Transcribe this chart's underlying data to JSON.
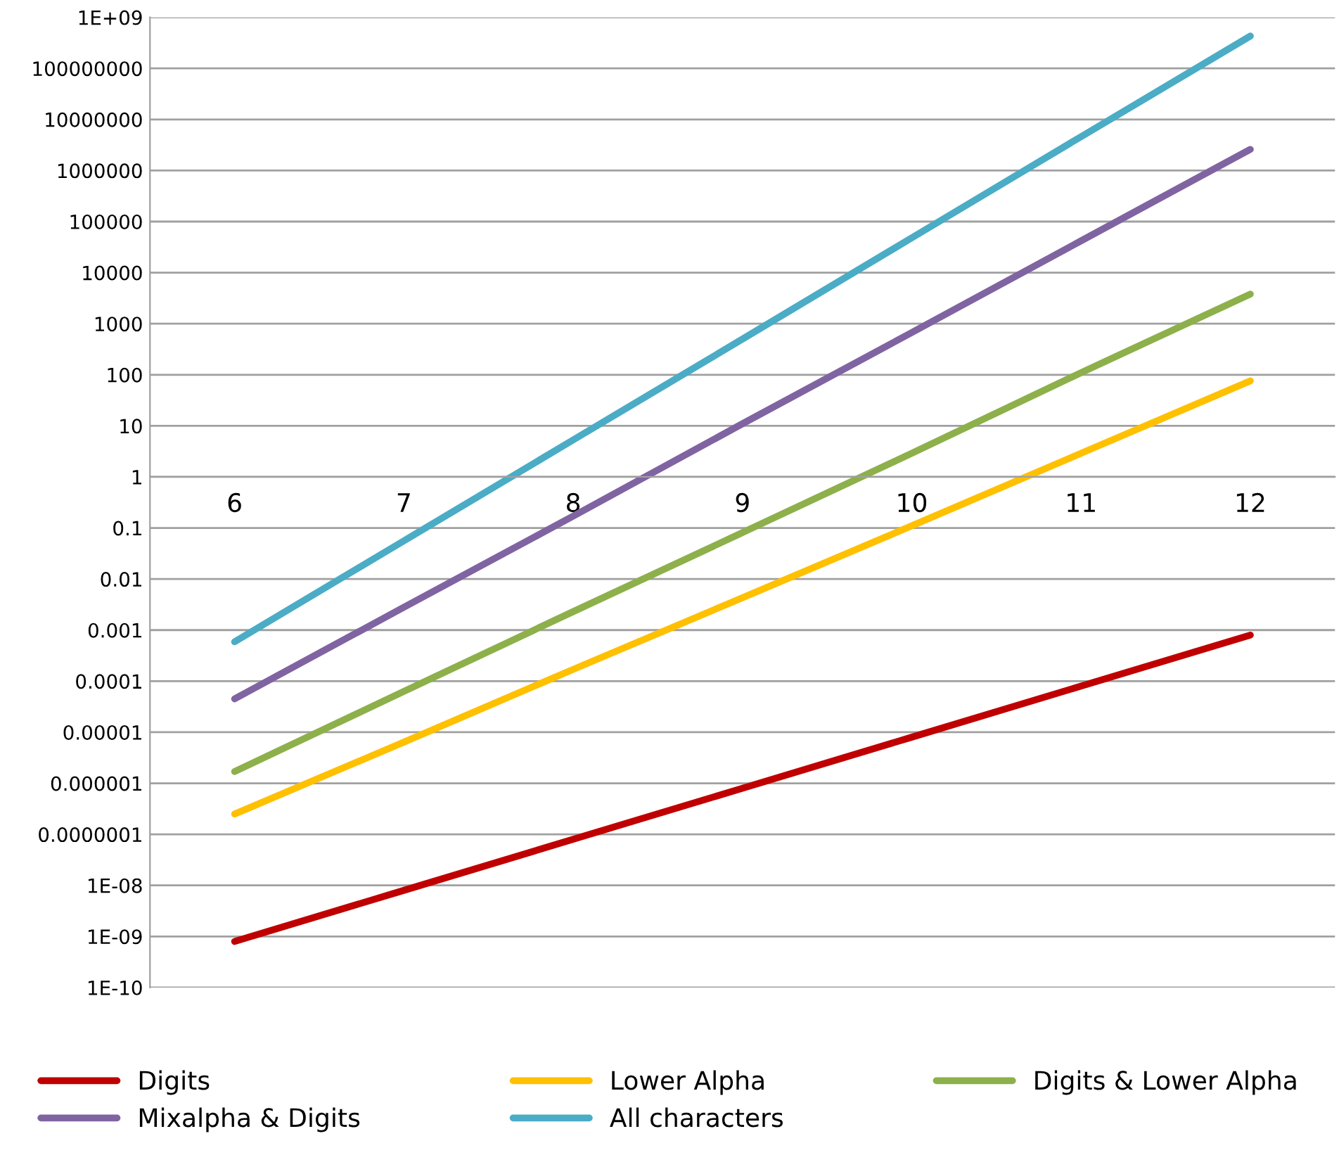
{
  "chart_data": {
    "type": "line",
    "categories": [
      "6",
      "7",
      "8",
      "9",
      "10",
      "11",
      "12"
    ],
    "series": [
      {
        "name": "Digits",
        "color": "#c00000",
        "values": [
          8e-10,
          8e-09,
          8e-08,
          8e-07,
          8e-06,
          8e-05,
          0.0008
        ]
      },
      {
        "name": "Lower Alpha",
        "color": "#ffc000",
        "values": [
          2.5e-07,
          6.4e-06,
          0.00017,
          0.0043,
          0.11,
          2.9,
          76
        ]
      },
      {
        "name": "Digits & Lower Alpha",
        "color": "#8db04b",
        "values": [
          1.7e-06,
          6.3e-05,
          0.0023,
          0.081,
          2.9,
          110,
          3800
        ]
      },
      {
        "name": "Mixalpha & Digits",
        "color": "#8064a2",
        "values": [
          4.5e-05,
          0.0028,
          0.17,
          11,
          670,
          42000,
          2600000
        ]
      },
      {
        "name": "All characters",
        "color": "#4bacc6",
        "values": [
          0.00059,
          0.056,
          5.3,
          500,
          48000,
          4600000,
          430000000
        ]
      }
    ],
    "log": true,
    "ylim": [
      1e-10,
      1000000000.0
    ],
    "yticks": [
      {
        "value": 1e-10,
        "label": "1E-10"
      },
      {
        "value": 1e-09,
        "label": "1E-09"
      },
      {
        "value": 1e-08,
        "label": "1E-08"
      },
      {
        "value": 1e-07,
        "label": "0.0000001"
      },
      {
        "value": 1e-06,
        "label": "0.000001"
      },
      {
        "value": 1e-05,
        "label": "0.00001"
      },
      {
        "value": 0.0001,
        "label": "0.0001"
      },
      {
        "value": 0.001,
        "label": "0.001"
      },
      {
        "value": 0.01,
        "label": "0.01"
      },
      {
        "value": 0.1,
        "label": "0.1"
      },
      1,
      10,
      100,
      1000,
      10000,
      100000,
      1000000,
      10000000,
      100000000,
      {
        "value": 1000000000.0,
        "label": "1E+09"
      }
    ],
    "grid": "y",
    "legend": "bottom",
    "marker": "none",
    "line_style": "solid"
  }
}
